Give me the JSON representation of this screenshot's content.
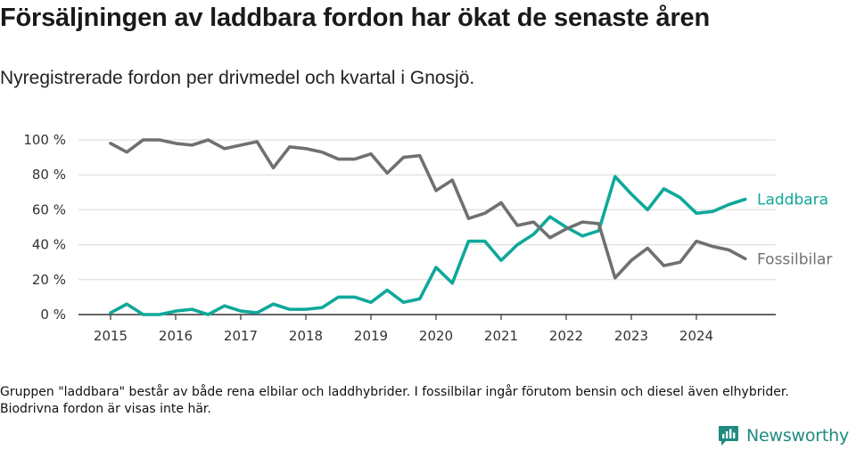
{
  "header": {
    "title": "Försäljningen av laddbara fordon har ökat de senaste åren",
    "subtitle": "Nyregistrerade fordon per drivmedel och kvartal i Gnosjö."
  },
  "footer": {
    "note": "Gruppen \"laddbara\" består av både rena elbilar och laddhybrider. I fossilbilar ingår förutom bensin och diesel även elhybrider. Biodrivna fordon är visas inte här.",
    "brand": "Newsworthy"
  },
  "colors": {
    "laddbara": "#0fa89a",
    "fossilbilar": "#707070",
    "grid": "#d9d9d9",
    "axis": "#333333",
    "brand": "#1f8a80"
  },
  "chart_data": {
    "type": "line",
    "title": "Försäljningen av laddbara fordon har ökat de senaste åren",
    "subtitle": "Nyregistrerade fordon per drivmedel och kvartal i Gnosjö.",
    "xlabel": "",
    "ylabel": "",
    "x": [
      "2015 Q1",
      "2015 Q2",
      "2015 Q3",
      "2015 Q4",
      "2016 Q1",
      "2016 Q2",
      "2016 Q3",
      "2016 Q4",
      "2017 Q1",
      "2017 Q2",
      "2017 Q3",
      "2017 Q4",
      "2018 Q1",
      "2018 Q2",
      "2018 Q3",
      "2018 Q4",
      "2019 Q1",
      "2019 Q2",
      "2019 Q3",
      "2019 Q4",
      "2020 Q1",
      "2020 Q2",
      "2020 Q3",
      "2020 Q4",
      "2021 Q1",
      "2021 Q2",
      "2021 Q3",
      "2021 Q4",
      "2022 Q1",
      "2022 Q2",
      "2022 Q3",
      "2022 Q4",
      "2023 Q1",
      "2023 Q2",
      "2023 Q3",
      "2023 Q4",
      "2024 Q1",
      "2024 Q2",
      "2024 Q3",
      "2024 Q4"
    ],
    "x_ticks": [
      "2015",
      "2016",
      "2017",
      "2018",
      "2019",
      "2020",
      "2021",
      "2022",
      "2023",
      "2024"
    ],
    "y_ticks": [
      0,
      20,
      40,
      60,
      80,
      100
    ],
    "y_tick_labels": [
      "0 %",
      "20 %",
      "40 %",
      "60 %",
      "80 %",
      "100 %"
    ],
    "ylim": [
      0,
      100
    ],
    "grid": true,
    "legend": "inline-right",
    "series": [
      {
        "name": "Laddbara",
        "color_key": "laddbara",
        "values": [
          1,
          6,
          0,
          0,
          2,
          3,
          0,
          5,
          2,
          1,
          6,
          3,
          3,
          4,
          10,
          10,
          7,
          14,
          7,
          9,
          27,
          18,
          42,
          42,
          31,
          40,
          46,
          56,
          50,
          45,
          48,
          79,
          69,
          60,
          72,
          67,
          58,
          59,
          63,
          66
        ]
      },
      {
        "name": "Fossilbilar",
        "color_key": "fossilbilar",
        "values": [
          98,
          93,
          100,
          100,
          98,
          97,
          100,
          95,
          97,
          99,
          84,
          96,
          95,
          93,
          89,
          89,
          92,
          81,
          90,
          91,
          71,
          77,
          55,
          58,
          64,
          51,
          53,
          44,
          49,
          53,
          52,
          21,
          31,
          38,
          28,
          30,
          42,
          39,
          37,
          32
        ]
      }
    ]
  }
}
